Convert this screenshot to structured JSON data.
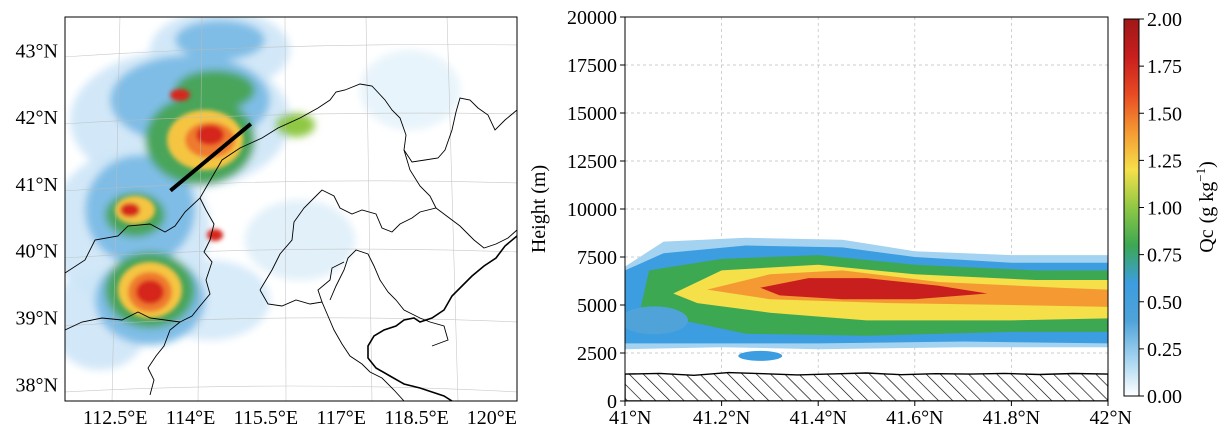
{
  "chart_data": [
    {
      "type": "heatmap",
      "title": "",
      "x_tick_labels": [
        "112.5°E",
        "114°E",
        "115.5°E",
        "117°E",
        "118.5°E",
        "120°E"
      ],
      "y_tick_labels": [
        "38°N",
        "39°N",
        "40°N",
        "41°N",
        "42°N",
        "43°N"
      ],
      "x_ticks_deg": [
        112.5,
        114,
        115.5,
        117,
        118.5,
        120
      ],
      "y_ticks_deg": [
        38,
        39,
        40,
        41,
        42,
        43
      ],
      "xlim": [
        111.5,
        120.5
      ],
      "ylim": [
        37.75,
        43.5
      ],
      "grid": true,
      "cross_section_line": {
        "start": [
          113.6,
          40.9
        ],
        "end": [
          115.2,
          41.9
        ],
        "color": "#000000"
      },
      "features": [
        "coastline",
        "province-boundaries"
      ]
    },
    {
      "type": "heatmap",
      "title": "",
      "xlabel": "",
      "ylabel": "Height (m)",
      "x_tick_labels": [
        "41°N",
        "41.2°N",
        "41.4°N",
        "41.6°N",
        "41.8°N",
        "42°N"
      ],
      "x_ticks": [
        41.0,
        41.2,
        41.4,
        41.6,
        41.8,
        42.0
      ],
      "y_tick_labels": [
        "0",
        "2500",
        "5000",
        "7500",
        "10000",
        "12500",
        "15000",
        "17500",
        "20000"
      ],
      "y_ticks": [
        0,
        2500,
        5000,
        7500,
        10000,
        12500,
        15000,
        17500,
        20000
      ],
      "xlim": [
        41.0,
        42.0
      ],
      "ylim": [
        0,
        20000
      ],
      "grid": true,
      "terrain_top_m": 1400,
      "colorbar": {
        "label": "Qc",
        "units": "g kg",
        "units_exponent": "−1",
        "range": [
          0,
          2
        ],
        "ticks": [
          0,
          0.25,
          0.5,
          0.75,
          1.0,
          1.25,
          1.5,
          1.75,
          2.0
        ],
        "tick_labels": [
          "0.00",
          "0.25",
          "0.50",
          "0.75",
          "1.00",
          "1.25",
          "1.50",
          "1.75",
          "2.00"
        ],
        "colormap": [
          "#ffffff",
          "#a3d3f0",
          "#4fa3d9",
          "#3c9de0",
          "#3ca852",
          "#8fc844",
          "#f5e04a",
          "#f59a33",
          "#e84b23",
          "#c81e1e",
          "#a01818"
        ]
      },
      "cloud_bands": [
        {
          "name": "outer",
          "qc": 0.2
        },
        {
          "name": "mid",
          "qc": 0.6
        },
        {
          "name": "green",
          "qc": 0.85
        },
        {
          "name": "yellow",
          "qc": 1.15
        },
        {
          "name": "orange",
          "qc": 1.45
        },
        {
          "name": "core",
          "qc": 1.7
        }
      ]
    }
  ]
}
